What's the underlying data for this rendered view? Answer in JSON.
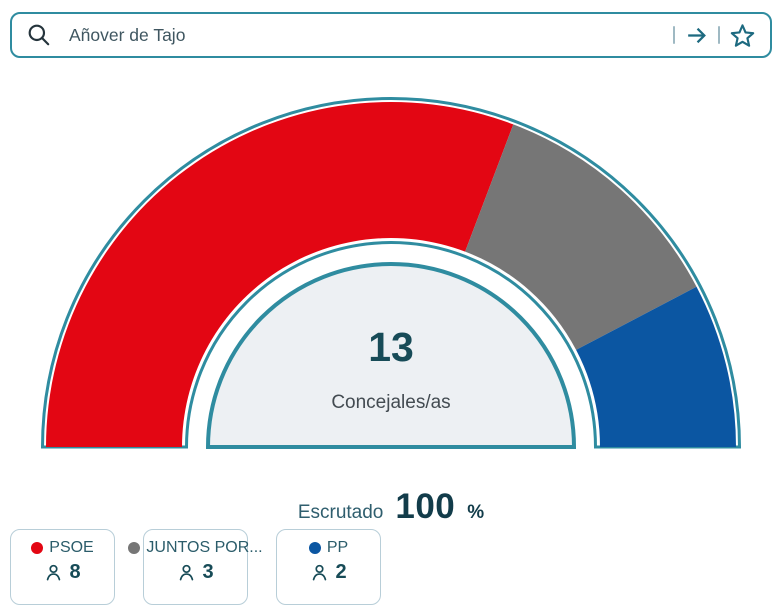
{
  "search": {
    "value": "Añover de Tajo"
  },
  "chart": {
    "center_total": "13",
    "center_label": "Concejales/as"
  },
  "scrutiny": {
    "label": "Escrutado",
    "value": "100",
    "unit": "%"
  },
  "legend": {
    "items": [
      {
        "party": "PSOE",
        "seats": "8",
        "color": "#e30613"
      },
      {
        "party": "JUNTOS POR...",
        "seats": "3",
        "color": "#767676"
      },
      {
        "party": "PP",
        "seats": "2",
        "color": "#0b56a2"
      }
    ]
  },
  "chart_data": {
    "type": "pie",
    "subtype": "hemicycle-half-donut",
    "center_value": 13,
    "center_label": "Concejales/as",
    "total_seats": 13,
    "escrutado_percent": 100,
    "angle_span_degrees": 180,
    "legend_position": "bottom-left",
    "series": [
      {
        "name": "PSOE",
        "seats": 8,
        "color": "#e30613"
      },
      {
        "name": "JUNTOS POR...",
        "seats": 3,
        "color": "#767676"
      },
      {
        "name": "PP",
        "seats": 2,
        "color": "#0b56a2"
      }
    ]
  },
  "colors": {
    "accent_teal": "#2f8ca0",
    "icon_teal": "#1d6a80",
    "dark_teal_text": "#174b57",
    "label_teal": "#2b5c6a",
    "inner_fill": "#edf0f3",
    "card_border": "#b8ced8"
  }
}
